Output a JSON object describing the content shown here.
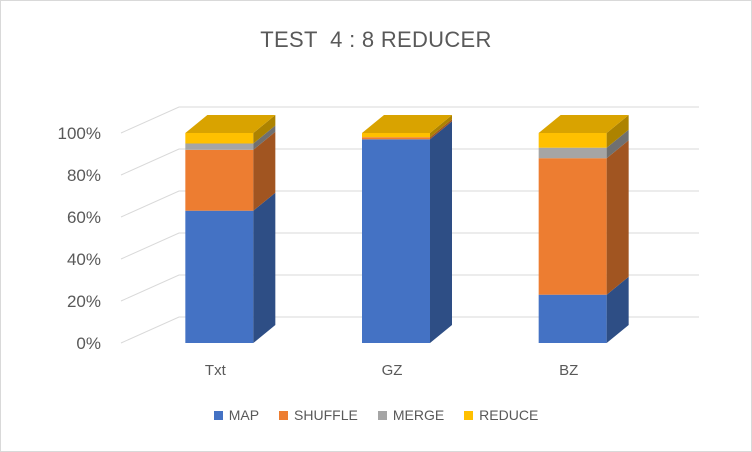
{
  "chart_data": {
    "type": "bar",
    "stacked": true,
    "percent": true,
    "title": "TEST  4 : 8 REDUCER",
    "xlabel": "",
    "ylabel": "",
    "categories": [
      "Txt",
      "GZ",
      "BZ"
    ],
    "series": [
      {
        "name": "MAP",
        "color": "#4472C4",
        "values": [
          63,
          97,
          23
        ]
      },
      {
        "name": "SHUFFLE",
        "color": "#ED7D31",
        "values": [
          29,
          1,
          65
        ]
      },
      {
        "name": "MERGE",
        "color": "#A5A5A5",
        "values": [
          3,
          0,
          5
        ]
      },
      {
        "name": "REDUCE",
        "color": "#FFC000",
        "values": [
          5,
          2,
          7
        ]
      }
    ],
    "ylim": [
      0,
      100
    ],
    "yticks": [
      "0%",
      "20%",
      "40%",
      "60%",
      "80%",
      "100%"
    ],
    "grid": true,
    "legend": "bottom"
  }
}
